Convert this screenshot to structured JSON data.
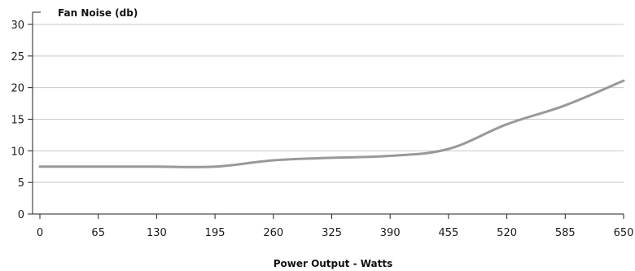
{
  "chart_data": {
    "type": "line",
    "title": "",
    "ylabel": "Fan Noise (db)",
    "xlabel": "Power Output - Watts",
    "x": [
      0,
      65,
      130,
      195,
      260,
      325,
      390,
      455,
      520,
      585,
      650
    ],
    "series": [
      {
        "values": [
          7.5,
          7.5,
          7.5,
          7.5,
          8.5,
          8.9,
          9.2,
          10.3,
          14.2,
          17.2,
          21.1
        ]
      }
    ],
    "xticks": [
      "0",
      "65",
      "130",
      "195",
      "260",
      "325",
      "390",
      "455",
      "520",
      "585",
      "650"
    ],
    "yticks": [
      "0",
      "5",
      "10",
      "15",
      "20",
      "25",
      "30"
    ],
    "xlim": [
      0,
      650
    ],
    "ylim": [
      0,
      30
    ],
    "grid": "horizontal",
    "colors": {
      "line": "#999999",
      "grid": "#c8c8c8",
      "axis": "#222222"
    }
  }
}
